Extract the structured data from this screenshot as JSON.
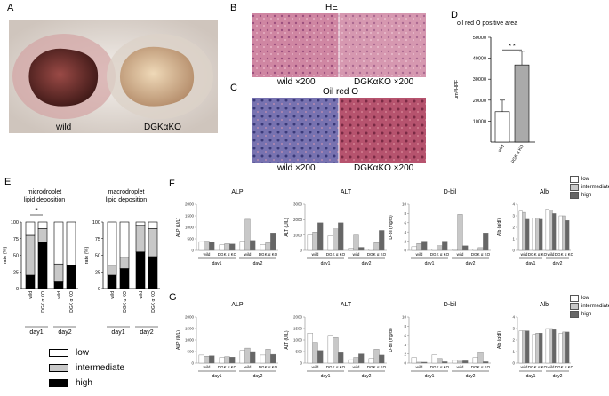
{
  "panels": {
    "A": {
      "label": "A",
      "captions": [
        "wild",
        "DGKαKO"
      ]
    },
    "B": {
      "label": "B",
      "title": "HE",
      "captions": [
        "wild ×200",
        "DGKαKO ×200"
      ]
    },
    "C": {
      "label": "C",
      "title": "Oil red O",
      "captions": [
        "wild ×200",
        "DGKαKO ×200"
      ]
    },
    "D": {
      "label": "D",
      "title": "oil red O positive area",
      "significance": "* *"
    },
    "E": {
      "label": "E",
      "significance": "*"
    },
    "F": {
      "label": "F"
    },
    "G": {
      "label": "G"
    }
  },
  "legend_E": {
    "items": [
      {
        "label": "low",
        "color": "#ffffff"
      },
      {
        "label": "intermediate",
        "color": "#c8c8c8"
      },
      {
        "label": "high",
        "color": "#000000"
      }
    ]
  },
  "legend_FG": {
    "items": [
      {
        "label": "low",
        "color": "#ffffff"
      },
      {
        "label": "intermediate",
        "color": "#c8c8c8"
      },
      {
        "label": "high",
        "color": "#666666"
      }
    ]
  },
  "colors": {
    "low": "#ffffff",
    "intermediate": "#c8c8c8",
    "high_E": "#000000",
    "high_FG": "#666666",
    "he_tissue": "#c9799a",
    "oil_wild": "#6e6aa8",
    "oil_ko": "#b4506a"
  },
  "chart_data": [
    {
      "id": "D",
      "type": "bar",
      "title": "oil red O positive area",
      "ylabel": "μm²/HPF",
      "categories": [
        "wild",
        "DGK α KO"
      ],
      "values": [
        14500,
        36800
      ],
      "errors": [
        5500,
        6500
      ],
      "colors": [
        "#ffffff",
        "#aaaaaa"
      ],
      "ylim": [
        0,
        50000
      ],
      "yticks": [
        10000,
        20000,
        30000,
        40000,
        50000
      ],
      "annotation": "* *"
    },
    {
      "id": "E1",
      "type": "bar",
      "stacked": true,
      "title": "microdroplet lipid deposition",
      "ylabel": "rate (%)",
      "ylim": [
        0,
        100
      ],
      "yticks": [
        0,
        25,
        50,
        75,
        100
      ],
      "categories": [
        "wild",
        "DGK α KO",
        "wild",
        "DGK α KO"
      ],
      "groups": [
        "day1",
        "day2"
      ],
      "series": [
        {
          "name": "high",
          "values": [
            20,
            70,
            10,
            35
          ]
        },
        {
          "name": "intermediate",
          "values": [
            60,
            20,
            27,
            0
          ]
        },
        {
          "name": "low",
          "values": [
            20,
            10,
            63,
            65
          ]
        }
      ],
      "annotation": "*"
    },
    {
      "id": "E2",
      "type": "bar",
      "stacked": true,
      "title": "macrodroplet lipid deposition",
      "ylabel": "rate (%)",
      "ylim": [
        0,
        100
      ],
      "yticks": [
        0,
        25,
        50,
        75,
        100
      ],
      "categories": [
        "wild",
        "DGK α KO",
        "wild",
        "DGK α KO"
      ],
      "groups": [
        "day1",
        "day2"
      ],
      "series": [
        {
          "name": "high",
          "values": [
            20,
            30,
            55,
            48
          ]
        },
        {
          "name": "intermediate",
          "values": [
            15,
            17,
            40,
            42
          ]
        },
        {
          "name": "low",
          "values": [
            65,
            53,
            5,
            10
          ]
        }
      ]
    },
    {
      "id": "F-ALP",
      "type": "bar",
      "title": "ALP",
      "ylabel": "ALP (U/L)",
      "ylim": [
        0,
        2000
      ],
      "yticks": [
        0,
        500,
        1000,
        1500,
        2000
      ],
      "categories": [
        "wild",
        "DGK α KO",
        "wild",
        "DGK α KO"
      ],
      "groups": [
        "day1",
        "day2"
      ],
      "series": [
        {
          "name": "low",
          "values": [
            380,
            250,
            400,
            250
          ]
        },
        {
          "name": "intermediate",
          "values": [
            400,
            290,
            1350,
            330
          ]
        },
        {
          "name": "high",
          "values": [
            360,
            280,
            430,
            760
          ]
        }
      ]
    },
    {
      "id": "F-ALT",
      "type": "bar",
      "title": "ALT",
      "ylabel": "ALT (U/L)",
      "ylim": [
        0,
        3000
      ],
      "yticks": [
        0,
        1000,
        2000,
        3000
      ],
      "categories": [
        "wild",
        "DGK α KO",
        "wild",
        "DGK α KO"
      ],
      "groups": [
        "day1",
        "day2"
      ],
      "series": [
        {
          "name": "low",
          "values": [
            1000,
            950,
            150,
            100
          ]
        },
        {
          "name": "intermediate",
          "values": [
            1200,
            1400,
            1000,
            500
          ]
        },
        {
          "name": "high",
          "values": [
            1800,
            1800,
            200,
            1300
          ]
        }
      ]
    },
    {
      "id": "F-Dbil",
      "type": "bar",
      "title": "D-bil",
      "ylabel": "D-bil (mg/dl)",
      "ylim": [
        0,
        10
      ],
      "yticks": [
        0,
        2,
        4,
        6,
        8,
        10
      ],
      "categories": [
        "wild",
        "DGK α KO",
        "wild",
        "DGK α KO"
      ],
      "groups": [
        "day1",
        "day2"
      ],
      "series": [
        {
          "name": "low",
          "values": [
            0.8,
            0.3,
            0.2,
            0.3
          ]
        },
        {
          "name": "intermediate",
          "values": [
            1.5,
            1.0,
            7.8,
            0.6
          ]
        },
        {
          "name": "high",
          "values": [
            2.0,
            2.0,
            1.0,
            3.8
          ]
        }
      ]
    },
    {
      "id": "F-Alb",
      "type": "bar",
      "title": "Alb",
      "ylabel": "Alb (g/dl)",
      "ylim": [
        0,
        4
      ],
      "yticks": [
        0,
        1,
        2,
        3,
        4
      ],
      "categories": [
        "wild",
        "DGK α KO",
        "wild",
        "DGK α KO"
      ],
      "groups": [
        "day1",
        "day2"
      ],
      "series": [
        {
          "name": "low",
          "values": [
            3.4,
            2.8,
            3.6,
            3.0
          ]
        },
        {
          "name": "intermediate",
          "values": [
            3.3,
            2.8,
            3.5,
            3.0
          ]
        },
        {
          "name": "high",
          "values": [
            2.7,
            2.7,
            3.2,
            2.6
          ]
        }
      ]
    },
    {
      "id": "G-ALP",
      "type": "bar",
      "title": "ALP",
      "ylabel": "ALP (U/L)",
      "ylim": [
        0,
        2000
      ],
      "yticks": [
        0,
        500,
        1000,
        1500,
        2000
      ],
      "categories": [
        "wild",
        "DGK α KO",
        "wild",
        "DGK α KO"
      ],
      "groups": [
        "day1",
        "day2"
      ],
      "series": [
        {
          "name": "low",
          "values": [
            350,
            250,
            550,
            350
          ]
        },
        {
          "name": "intermediate",
          "values": [
            300,
            280,
            650,
            600
          ]
        },
        {
          "name": "high",
          "values": [
            320,
            260,
            500,
            380
          ]
        }
      ]
    },
    {
      "id": "G-ALT",
      "type": "bar",
      "title": "ALT",
      "ylabel": "ALT (U/L)",
      "ylim": [
        0,
        2000
      ],
      "yticks": [
        0,
        500,
        1000,
        1500,
        2000
      ],
      "categories": [
        "wild",
        "DGK α KO",
        "wild",
        "DGK α KO"
      ],
      "groups": [
        "day1",
        "day2"
      ],
      "series": [
        {
          "name": "low",
          "values": [
            1300,
            1200,
            150,
            200
          ]
        },
        {
          "name": "intermediate",
          "values": [
            900,
            1100,
            250,
            600
          ]
        },
        {
          "name": "high",
          "values": [
            550,
            450,
            400,
            350
          ]
        }
      ]
    },
    {
      "id": "G-Dbil",
      "type": "bar",
      "title": "D-bil",
      "ylabel": "D-bil (mg/dl)",
      "ylim": [
        0,
        10
      ],
      "yticks": [
        0,
        2,
        4,
        6,
        8,
        10
      ],
      "categories": [
        "wild",
        "DGK α KO",
        "wild",
        "DGK α KO"
      ],
      "groups": [
        "day1",
        "day2"
      ],
      "series": [
        {
          "name": "low",
          "values": [
            1.2,
            1.8,
            0.6,
            1.2
          ]
        },
        {
          "name": "intermediate",
          "values": [
            0.2,
            1.0,
            0.4,
            2.3
          ]
        },
        {
          "name": "high",
          "values": [
            0.2,
            0.3,
            0.5,
            0.3
          ]
        }
      ]
    },
    {
      "id": "G-Alb",
      "type": "bar",
      "title": "Alb",
      "ylabel": "Alb (g/dl)",
      "ylim": [
        0,
        4
      ],
      "yticks": [
        0,
        1,
        2,
        3,
        4
      ],
      "categories": [
        "wild",
        "DGK α KO",
        "wild",
        "DGK α KO"
      ],
      "groups": [
        "day1",
        "day2"
      ],
      "series": [
        {
          "name": "low",
          "values": [
            2.8,
            2.5,
            3.0,
            2.6
          ]
        },
        {
          "name": "intermediate",
          "values": [
            2.8,
            2.6,
            3.0,
            2.7
          ]
        },
        {
          "name": "high",
          "values": [
            2.8,
            2.6,
            2.9,
            2.7
          ]
        }
      ]
    }
  ]
}
